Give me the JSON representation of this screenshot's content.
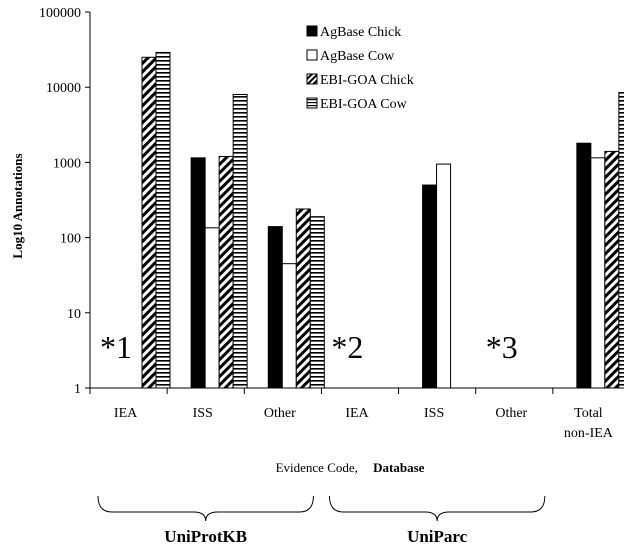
{
  "chart_data": {
    "type": "bar",
    "ylabel": "Log10 Annotations",
    "xlabel_prefix": "Evidence Code,",
    "xlabel_bold": "Database",
    "yscale": "log",
    "ylim": [
      1,
      100000
    ],
    "y_ticks": [
      {
        "value": 1,
        "label": "1"
      },
      {
        "value": 10,
        "label": "10"
      },
      {
        "value": 100,
        "label": "100"
      },
      {
        "value": 1000,
        "label": "1000"
      },
      {
        "value": 10000,
        "label": "10000"
      },
      {
        "value": 100000,
        "label": "100000"
      }
    ],
    "categories": [
      {
        "label": "IEA",
        "label2": ""
      },
      {
        "label": "ISS",
        "label2": ""
      },
      {
        "label": "Other",
        "label2": ""
      },
      {
        "label": "IEA",
        "label2": ""
      },
      {
        "label": "ISS",
        "label2": ""
      },
      {
        "label": "Other",
        "label2": ""
      },
      {
        "label": "Total",
        "label2": "non-IEA"
      }
    ],
    "series": [
      {
        "name": "AgBase Chick",
        "pattern": "solid",
        "values": [
          null,
          1150,
          140,
          null,
          500,
          null,
          1800
        ]
      },
      {
        "name": "AgBase Cow",
        "pattern": "open",
        "values": [
          null,
          135,
          45,
          null,
          950,
          null,
          1150
        ]
      },
      {
        "name": "EBI-GOA Chick",
        "pattern": "diagonal",
        "values": [
          25000,
          1200,
          240,
          null,
          null,
          null,
          1400
        ]
      },
      {
        "name": "EBI-GOA Cow",
        "pattern": "horizontal",
        "values": [
          29000,
          8000,
          190,
          null,
          null,
          null,
          8500
        ]
      }
    ],
    "legend_position": "top-right",
    "grid": false,
    "annotations": [
      {
        "text": "*1",
        "category": 0
      },
      {
        "text": "*2",
        "category": 3
      },
      {
        "text": "*3",
        "category": 5
      }
    ],
    "groups": [
      {
        "label": "UniProtKB",
        "from": 0,
        "to": 2
      },
      {
        "label": "UniParc",
        "from": 3,
        "to": 5
      }
    ]
  },
  "colors": {
    "bar_fill_solid": "#000000",
    "bar_stroke": "#000000",
    "background": "#ffffff"
  }
}
